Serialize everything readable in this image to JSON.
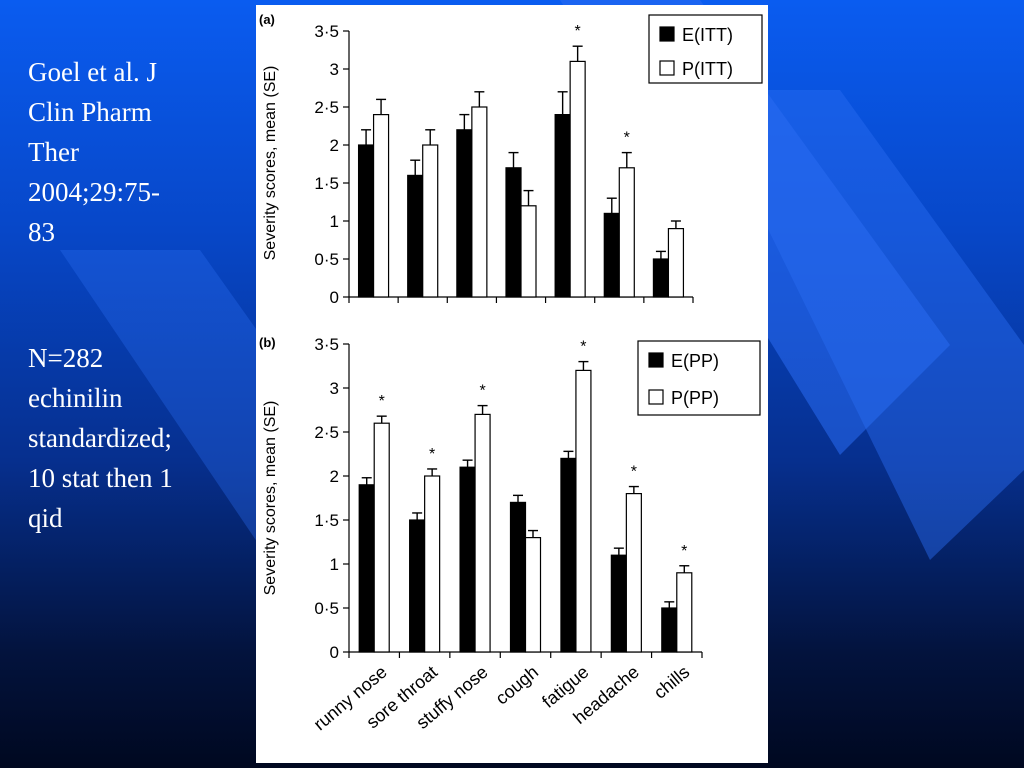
{
  "slide": {
    "citation_lines": [
      "Goel et al. J",
      "Clin Pharm",
      "Ther",
      "2004;29:75-",
      "83"
    ],
    "study_lines": [
      "N=282",
      "echinilin",
      "standardized;",
      "10 stat then 1",
      "qid"
    ]
  },
  "colors": {
    "background_top": "#0a5cf0",
    "background_bottom": "#000820",
    "bar_e": "#000000",
    "bar_p": "#ffffff"
  },
  "chart_data": [
    {
      "panel": "(a)",
      "type": "bar",
      "ylabel": "Severity scores, mean (SE)",
      "ylim": [
        0,
        3.5
      ],
      "yticks": [
        "0",
        "0·5",
        "1",
        "1·5",
        "2",
        "2·5",
        "3",
        "3·5"
      ],
      "categories": [
        "runny nose",
        "sore throat",
        "stuffy nose",
        "cough",
        "fatigue",
        "headache",
        "chills"
      ],
      "category_labels_shown": false,
      "legend_position": "top-right",
      "series": [
        {
          "name": "E(ITT)",
          "values": [
            2.0,
            1.6,
            2.2,
            1.7,
            2.4,
            1.1,
            0.5
          ],
          "errors": [
            0.2,
            0.2,
            0.2,
            0.2,
            0.3,
            0.2,
            0.1
          ]
        },
        {
          "name": "P(ITT)",
          "values": [
            2.4,
            2.0,
            2.5,
            1.2,
            3.1,
            1.7,
            0.9
          ],
          "errors": [
            0.2,
            0.2,
            0.2,
            0.2,
            0.2,
            0.2,
            0.1
          ]
        }
      ],
      "significance": [
        {
          "category": "fatigue",
          "mark": "*"
        },
        {
          "category": "headache",
          "mark": "*"
        }
      ]
    },
    {
      "panel": "(b)",
      "type": "bar",
      "ylabel": "Severity scores, mean (SE)",
      "ylim": [
        0,
        3.5
      ],
      "yticks": [
        "0",
        "0·5",
        "1",
        "1·5",
        "2",
        "2·5",
        "3",
        "3·5"
      ],
      "categories": [
        "runny nose",
        "sore throat",
        "stuffy nose",
        "cough",
        "fatigue",
        "headache",
        "chills"
      ],
      "category_labels_shown": true,
      "legend_position": "top-right",
      "series": [
        {
          "name": "E(PP)",
          "values": [
            1.9,
            1.5,
            2.1,
            1.7,
            2.2,
            1.1,
            0.5
          ],
          "errors": [
            0.08,
            0.08,
            0.08,
            0.08,
            0.08,
            0.08,
            0.07
          ]
        },
        {
          "name": "P(PP)",
          "values": [
            2.6,
            2.0,
            2.7,
            1.3,
            3.2,
            1.8,
            0.9
          ],
          "errors": [
            0.08,
            0.08,
            0.1,
            0.08,
            0.1,
            0.08,
            0.08
          ]
        }
      ],
      "significance": [
        {
          "category": "runny nose",
          "mark": "*"
        },
        {
          "category": "sore throat",
          "mark": "*"
        },
        {
          "category": "stuffy nose",
          "mark": "*"
        },
        {
          "category": "fatigue",
          "mark": "*"
        },
        {
          "category": "headache",
          "mark": "*"
        },
        {
          "category": "chills",
          "mark": "*"
        }
      ]
    }
  ]
}
